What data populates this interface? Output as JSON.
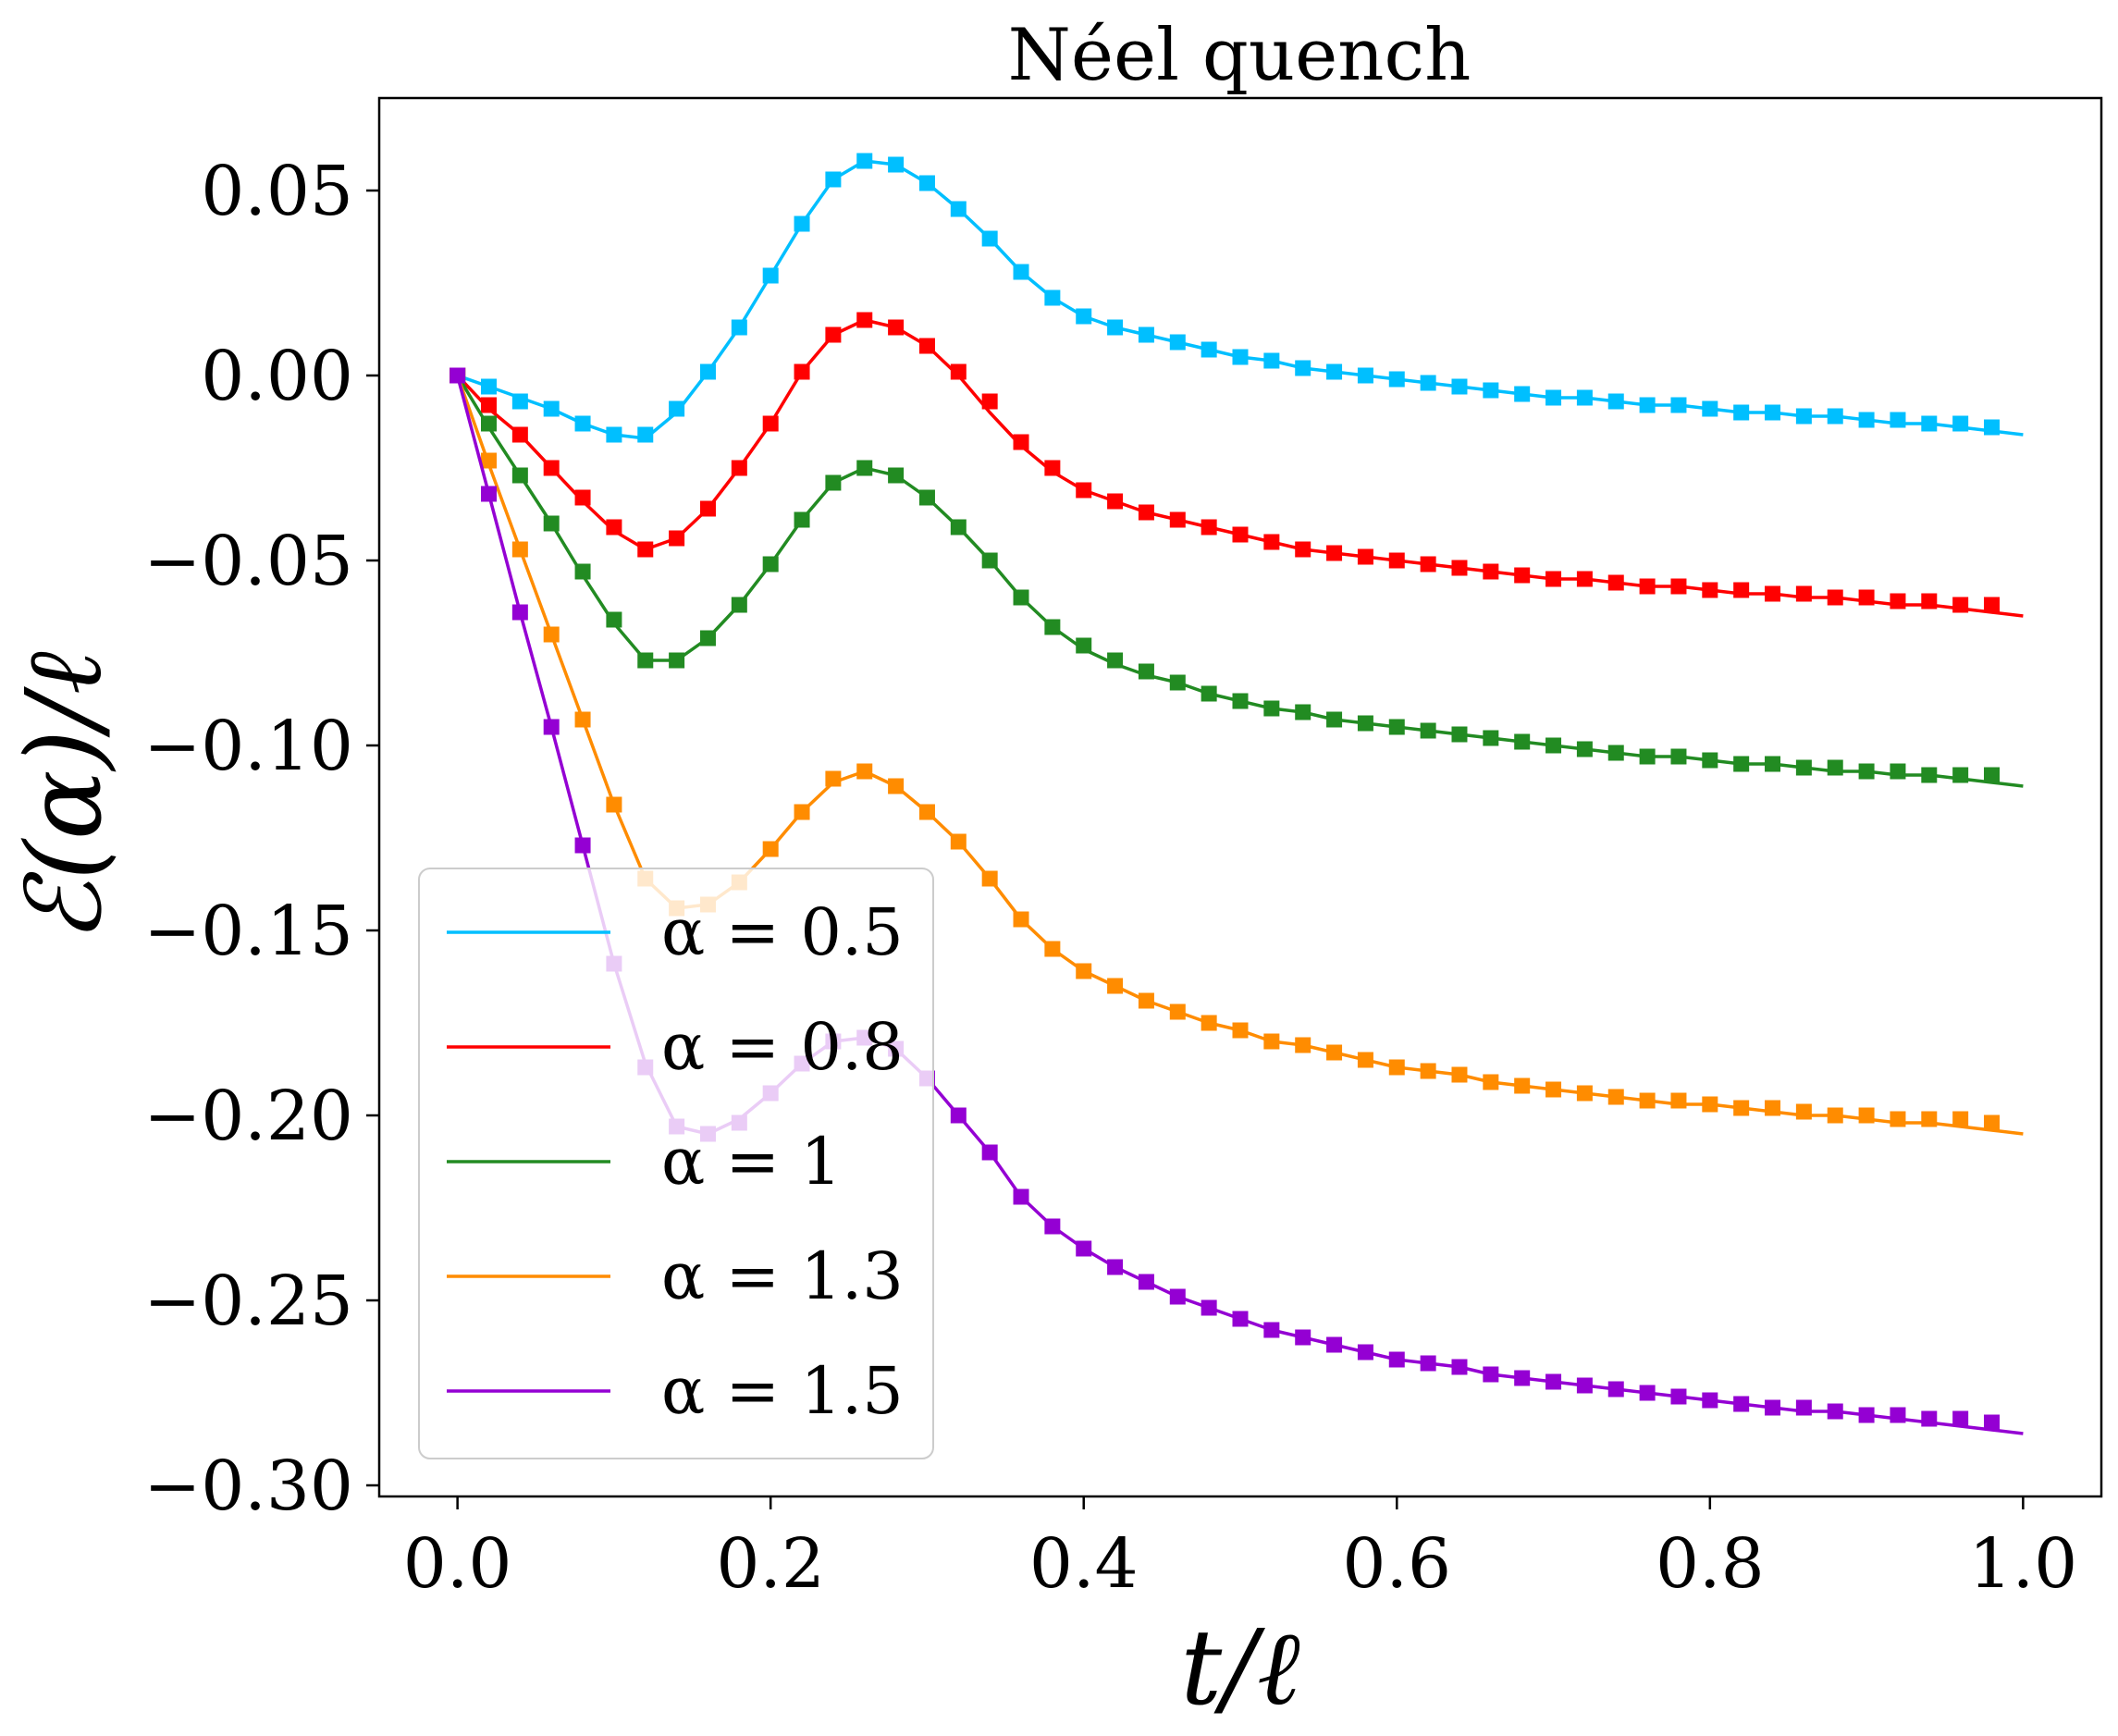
{
  "chart_data": {
    "type": "line",
    "title": "Néel quench",
    "xlabel": "t/ℓ",
    "ylabel": "ℰ(α)/ℓ",
    "xlim": [
      -0.05,
      1.05
    ],
    "ylim": [
      -0.303,
      0.075
    ],
    "x_ticks": [
      0.0,
      0.2,
      0.4,
      0.6,
      0.8,
      1.0
    ],
    "x_tick_labels": [
      "0.0",
      "0.2",
      "0.4",
      "0.6",
      "0.8",
      "1.0"
    ],
    "y_ticks": [
      0.05,
      0.0,
      -0.05,
      -0.1,
      -0.15,
      -0.2,
      -0.25,
      -0.3
    ],
    "y_tick_labels": [
      "0.05",
      "0.00",
      "−0.05",
      "−0.10",
      "−0.15",
      "−0.20",
      "−0.25",
      "−0.30"
    ],
    "legend_position": "lower-left",
    "grid": false,
    "line_x": [
      0,
      0.02,
      0.04,
      0.06,
      0.08,
      0.1,
      0.12,
      0.14,
      0.16,
      0.18,
      0.2,
      0.22,
      0.24,
      0.26,
      0.28,
      0.3,
      0.32,
      0.34,
      0.36,
      0.38,
      0.4,
      0.42,
      0.44,
      0.46,
      0.48,
      0.5,
      0.52,
      0.54,
      0.56,
      0.58,
      0.6,
      0.62,
      0.64,
      0.66,
      0.68,
      0.7,
      0.72,
      0.74,
      0.76,
      0.78,
      0.8,
      0.82,
      0.84,
      0.86,
      0.88,
      0.9,
      0.92,
      0.94,
      0.96,
      0.98,
      1.0
    ],
    "marker_x": [
      0,
      0.02,
      0.04,
      0.06,
      0.08,
      0.1,
      0.12,
      0.14,
      0.16,
      0.18,
      0.2,
      0.22,
      0.24,
      0.26,
      0.28,
      0.3,
      0.32,
      0.34,
      0.36,
      0.38,
      0.4,
      0.42,
      0.44,
      0.46,
      0.48,
      0.5,
      0.52,
      0.54,
      0.56,
      0.58,
      0.6,
      0.62,
      0.64,
      0.66,
      0.68,
      0.7,
      0.72,
      0.74,
      0.76,
      0.78,
      0.8,
      0.82,
      0.84,
      0.86,
      0.88,
      0.9,
      0.92,
      0.94,
      0.96,
      0.98
    ],
    "series": [
      {
        "name": "α = 0.5",
        "color": "#00bfff",
        "values": [
          0.0,
          -0.003,
          -0.006,
          -0.009,
          -0.013,
          -0.016,
          -0.017,
          -0.01,
          0.001,
          0.013,
          0.027,
          0.041,
          0.053,
          0.058,
          0.057,
          0.052,
          0.045,
          0.037,
          0.028,
          0.021,
          0.016,
          0.013,
          0.011,
          0.009,
          0.007,
          0.005,
          0.004,
          0.002,
          0.001,
          0.0,
          -0.001,
          -0.002,
          -0.003,
          -0.004,
          -0.005,
          -0.006,
          -0.006,
          -0.007,
          -0.008,
          -0.008,
          -0.009,
          -0.01,
          -0.01,
          -0.011,
          -0.011,
          -0.012,
          -0.013,
          -0.013,
          -0.014,
          -0.015,
          -0.016
        ],
        "markers": [
          0.0,
          -0.003,
          -0.007,
          -0.009,
          -0.013,
          -0.016,
          -0.016,
          -0.009,
          0.001,
          0.013,
          0.027,
          0.041,
          0.053,
          0.058,
          0.057,
          0.052,
          0.045,
          0.037,
          0.028,
          0.021,
          0.016,
          0.013,
          0.011,
          0.009,
          0.007,
          0.005,
          0.004,
          0.002,
          0.001,
          0.0,
          -0.001,
          -0.002,
          -0.003,
          -0.004,
          -0.005,
          -0.006,
          -0.006,
          -0.007,
          -0.008,
          -0.008,
          -0.009,
          -0.01,
          -0.01,
          -0.011,
          -0.011,
          -0.012,
          -0.012,
          -0.013,
          -0.013,
          -0.014
        ]
      },
      {
        "name": "α = 0.8",
        "color": "#ff0000",
        "values": [
          0.0,
          -0.009,
          -0.016,
          -0.025,
          -0.034,
          -0.042,
          -0.047,
          -0.044,
          -0.036,
          -0.025,
          -0.013,
          0.001,
          0.011,
          0.015,
          0.013,
          0.008,
          0.0,
          -0.01,
          -0.019,
          -0.026,
          -0.031,
          -0.034,
          -0.037,
          -0.039,
          -0.041,
          -0.043,
          -0.045,
          -0.047,
          -0.048,
          -0.049,
          -0.05,
          -0.051,
          -0.052,
          -0.053,
          -0.054,
          -0.055,
          -0.055,
          -0.056,
          -0.057,
          -0.057,
          -0.058,
          -0.059,
          -0.059,
          -0.06,
          -0.06,
          -0.061,
          -0.062,
          -0.062,
          -0.063,
          -0.064,
          -0.065
        ],
        "markers": [
          0.0,
          -0.008,
          -0.016,
          -0.025,
          -0.033,
          -0.041,
          -0.047,
          -0.044,
          -0.036,
          -0.025,
          -0.013,
          0.001,
          0.011,
          0.015,
          0.013,
          0.008,
          0.001,
          -0.007,
          -0.018,
          -0.025,
          -0.031,
          -0.034,
          -0.037,
          -0.039,
          -0.041,
          -0.043,
          -0.045,
          -0.047,
          -0.048,
          -0.049,
          -0.05,
          -0.051,
          -0.052,
          -0.053,
          -0.054,
          -0.055,
          -0.055,
          -0.056,
          -0.057,
          -0.057,
          -0.058,
          -0.058,
          -0.059,
          -0.059,
          -0.06,
          -0.06,
          -0.061,
          -0.061,
          -0.062,
          -0.062
        ]
      },
      {
        "name": "α = 1",
        "color": "#228b22",
        "values": [
          0.0,
          -0.014,
          -0.027,
          -0.04,
          -0.054,
          -0.067,
          -0.077,
          -0.077,
          -0.071,
          -0.062,
          -0.051,
          -0.039,
          -0.029,
          -0.025,
          -0.027,
          -0.033,
          -0.041,
          -0.05,
          -0.06,
          -0.068,
          -0.074,
          -0.078,
          -0.081,
          -0.083,
          -0.086,
          -0.088,
          -0.09,
          -0.091,
          -0.093,
          -0.094,
          -0.095,
          -0.096,
          -0.097,
          -0.098,
          -0.099,
          -0.1,
          -0.101,
          -0.102,
          -0.103,
          -0.103,
          -0.104,
          -0.105,
          -0.105,
          -0.106,
          -0.107,
          -0.107,
          -0.108,
          -0.108,
          -0.109,
          -0.11,
          -0.111
        ],
        "markers": [
          0.0,
          -0.013,
          -0.027,
          -0.04,
          -0.053,
          -0.066,
          -0.077,
          -0.077,
          -0.071,
          -0.062,
          -0.051,
          -0.039,
          -0.029,
          -0.025,
          -0.027,
          -0.033,
          -0.041,
          -0.05,
          -0.06,
          -0.068,
          -0.073,
          -0.077,
          -0.08,
          -0.083,
          -0.086,
          -0.088,
          -0.09,
          -0.091,
          -0.093,
          -0.094,
          -0.095,
          -0.096,
          -0.097,
          -0.098,
          -0.099,
          -0.1,
          -0.101,
          -0.102,
          -0.103,
          -0.103,
          -0.104,
          -0.105,
          -0.105,
          -0.106,
          -0.106,
          -0.107,
          -0.107,
          -0.108,
          -0.108,
          -0.108
        ]
      },
      {
        "name": "α = 1.3",
        "color": "#ff8c00",
        "values": [
          0.0,
          -0.024,
          -0.047,
          -0.07,
          -0.093,
          -0.116,
          -0.136,
          -0.144,
          -0.143,
          -0.137,
          -0.128,
          -0.118,
          -0.11,
          -0.107,
          -0.111,
          -0.118,
          -0.126,
          -0.136,
          -0.147,
          -0.155,
          -0.161,
          -0.165,
          -0.169,
          -0.172,
          -0.175,
          -0.177,
          -0.18,
          -0.181,
          -0.183,
          -0.185,
          -0.187,
          -0.188,
          -0.189,
          -0.191,
          -0.192,
          -0.193,
          -0.194,
          -0.195,
          -0.196,
          -0.197,
          -0.197,
          -0.198,
          -0.199,
          -0.2,
          -0.2,
          -0.201,
          -0.202,
          -0.202,
          -0.203,
          -0.204,
          -0.205
        ],
        "markers": [
          0.0,
          -0.023,
          -0.047,
          -0.07,
          -0.093,
          -0.116,
          -0.136,
          -0.144,
          -0.143,
          -0.137,
          -0.128,
          -0.118,
          -0.109,
          -0.107,
          -0.111,
          -0.118,
          -0.126,
          -0.136,
          -0.147,
          -0.155,
          -0.161,
          -0.165,
          -0.169,
          -0.172,
          -0.175,
          -0.177,
          -0.18,
          -0.181,
          -0.183,
          -0.185,
          -0.187,
          -0.188,
          -0.189,
          -0.191,
          -0.192,
          -0.193,
          -0.194,
          -0.195,
          -0.196,
          -0.196,
          -0.197,
          -0.198,
          -0.198,
          -0.199,
          -0.2,
          -0.2,
          -0.201,
          -0.201,
          -0.201,
          -0.202
        ]
      },
      {
        "name": "α = 1.5",
        "color": "#9400d3",
        "values": [
          0.0,
          -0.032,
          -0.064,
          -0.095,
          -0.127,
          -0.159,
          -0.186,
          -0.203,
          -0.205,
          -0.201,
          -0.194,
          -0.186,
          -0.18,
          -0.179,
          -0.182,
          -0.19,
          -0.2,
          -0.21,
          -0.222,
          -0.23,
          -0.236,
          -0.241,
          -0.245,
          -0.249,
          -0.252,
          -0.255,
          -0.258,
          -0.26,
          -0.262,
          -0.264,
          -0.266,
          -0.267,
          -0.268,
          -0.27,
          -0.271,
          -0.272,
          -0.273,
          -0.274,
          -0.275,
          -0.276,
          -0.277,
          -0.278,
          -0.279,
          -0.28,
          -0.28,
          -0.281,
          -0.282,
          -0.283,
          -0.284,
          -0.285,
          -0.286
        ],
        "markers": [
          0.0,
          -0.032,
          -0.064,
          -0.095,
          -0.127,
          -0.159,
          -0.187,
          -0.203,
          -0.205,
          -0.202,
          -0.194,
          -0.186,
          -0.18,
          -0.179,
          -0.182,
          -0.19,
          -0.2,
          -0.21,
          -0.222,
          -0.23,
          -0.236,
          -0.241,
          -0.245,
          -0.249,
          -0.252,
          -0.255,
          -0.258,
          -0.26,
          -0.262,
          -0.264,
          -0.266,
          -0.267,
          -0.268,
          -0.27,
          -0.271,
          -0.272,
          -0.273,
          -0.274,
          -0.275,
          -0.276,
          -0.277,
          -0.278,
          -0.279,
          -0.279,
          -0.28,
          -0.281,
          -0.281,
          -0.282,
          -0.282,
          -0.283
        ]
      }
    ]
  }
}
